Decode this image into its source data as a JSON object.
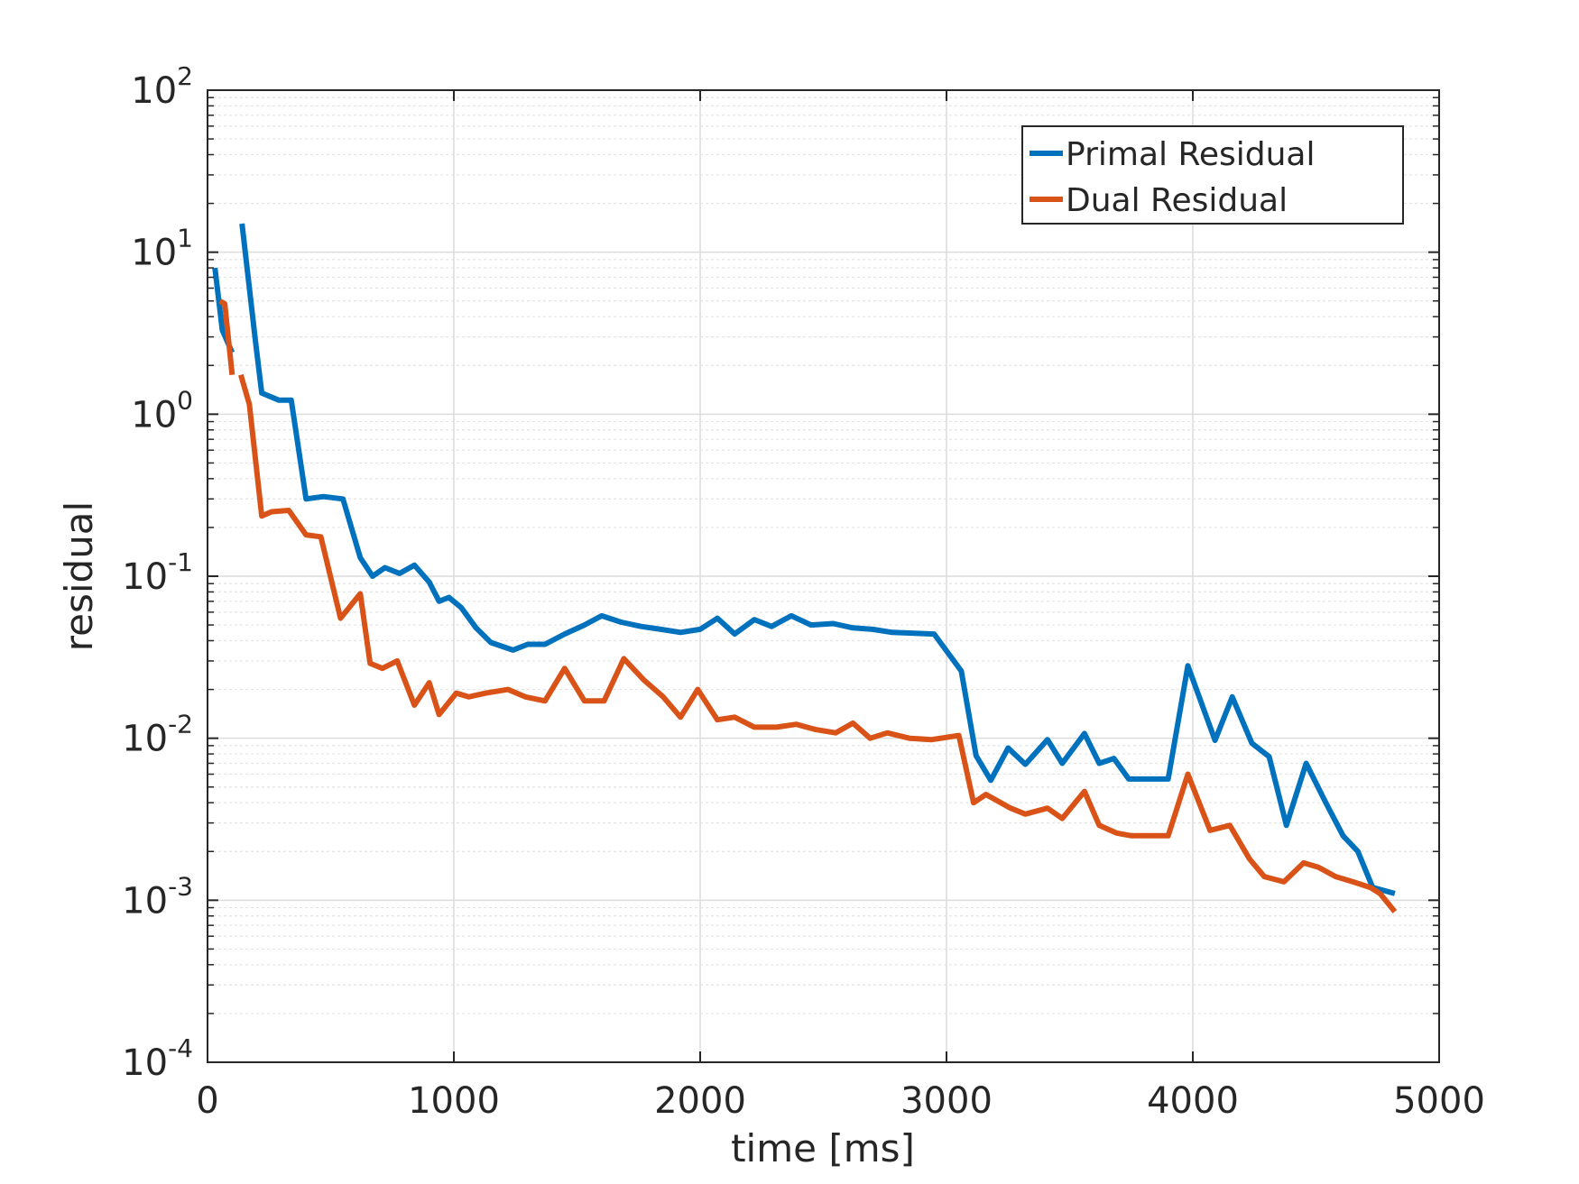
{
  "chart_data": {
    "type": "line",
    "title": "",
    "xlabel": "time [ms]",
    "ylabel": "residual",
    "xlim": [
      0,
      5000
    ],
    "ylim": [
      0.0001,
      100
    ],
    "yscale": "log",
    "grid": true,
    "minor_grid_y": true,
    "legend_position": "top-right",
    "x_ticks": [
      0,
      1000,
      2000,
      3000,
      4000,
      5000
    ],
    "x_tick_labels": [
      "0",
      "1000",
      "2000",
      "3000",
      "4000",
      "5000"
    ],
    "y_ticks": [
      {
        "value": 0.0001,
        "base": "10",
        "exp": "-4"
      },
      {
        "value": 0.001,
        "base": "10",
        "exp": "-3"
      },
      {
        "value": 0.01,
        "base": "10",
        "exp": "-2"
      },
      {
        "value": 0.1,
        "base": "10",
        "exp": "-1"
      },
      {
        "value": 1,
        "base": "10",
        "exp": "0"
      },
      {
        "value": 10,
        "base": "10",
        "exp": "1"
      },
      {
        "value": 100,
        "base": "10",
        "exp": "2"
      }
    ],
    "series": [
      {
        "name": "Primal Residual",
        "color": "#0072BD",
        "segments": [
          [
            [
              30,
              8.0
            ],
            [
              60,
              3.3
            ],
            [
              100,
              2.4
            ]
          ],
          [
            [
              140,
              15.0
            ],
            [
              195,
              2.8
            ],
            [
              220,
              1.35
            ],
            [
              290,
              1.22
            ],
            [
              340,
              1.22
            ],
            [
              400,
              0.3
            ],
            [
              470,
              0.31
            ],
            [
              550,
              0.3
            ],
            [
              620,
              0.13
            ],
            [
              670,
              0.1
            ],
            [
              720,
              0.113
            ],
            [
              780,
              0.104
            ],
            [
              840,
              0.117
            ],
            [
              900,
              0.092
            ],
            [
              940,
              0.07
            ],
            [
              980,
              0.074
            ],
            [
              1030,
              0.064
            ],
            [
              1090,
              0.048
            ],
            [
              1150,
              0.039
            ],
            [
              1240,
              0.035
            ],
            [
              1300,
              0.038
            ],
            [
              1370,
              0.038
            ],
            [
              1450,
              0.044
            ],
            [
              1530,
              0.05
            ],
            [
              1600,
              0.057
            ],
            [
              1680,
              0.052
            ],
            [
              1760,
              0.049
            ],
            [
              1840,
              0.047
            ],
            [
              1920,
              0.045
            ],
            [
              2000,
              0.047
            ],
            [
              2070,
              0.055
            ],
            [
              2140,
              0.044
            ],
            [
              2220,
              0.054
            ],
            [
              2290,
              0.049
            ],
            [
              2370,
              0.057
            ],
            [
              2450,
              0.05
            ],
            [
              2540,
              0.051
            ],
            [
              2620,
              0.048
            ],
            [
              2700,
              0.047
            ],
            [
              2780,
              0.045
            ],
            [
              2950,
              0.044
            ],
            [
              3060,
              0.026
            ],
            [
              3120,
              0.0078
            ],
            [
              3180,
              0.0055
            ],
            [
              3250,
              0.0087
            ],
            [
              3320,
              0.0069
            ],
            [
              3410,
              0.0098
            ],
            [
              3470,
              0.007
            ],
            [
              3560,
              0.0107
            ],
            [
              3620,
              0.007
            ],
            [
              3680,
              0.0075
            ],
            [
              3740,
              0.0056
            ],
            [
              3900,
              0.0056
            ],
            [
              3980,
              0.028
            ],
            [
              4090,
              0.0097
            ],
            [
              4160,
              0.018
            ],
            [
              4240,
              0.0093
            ],
            [
              4310,
              0.0077
            ],
            [
              4380,
              0.0029
            ],
            [
              4460,
              0.007
            ],
            [
              4540,
              0.004
            ],
            [
              4610,
              0.0025
            ],
            [
              4670,
              0.002
            ],
            [
              4730,
              0.0012
            ],
            [
              4820,
              0.0011
            ]
          ]
        ]
      },
      {
        "name": "Dual Residual",
        "color": "#D95319",
        "segments": [
          [
            [
              50,
              5.0
            ],
            [
              70,
              4.8
            ],
            [
              100,
              1.75
            ]
          ],
          [
            [
              135,
              1.75
            ],
            [
              170,
              1.15
            ],
            [
              220,
              0.235
            ],
            [
              260,
              0.25
            ],
            [
              330,
              0.255
            ],
            [
              400,
              0.18
            ],
            [
              460,
              0.175
            ],
            [
              540,
              0.055
            ],
            [
              620,
              0.078
            ],
            [
              660,
              0.029
            ],
            [
              710,
              0.027
            ],
            [
              770,
              0.03
            ],
            [
              840,
              0.016
            ],
            [
              900,
              0.022
            ],
            [
              940,
              0.014
            ],
            [
              1010,
              0.019
            ],
            [
              1060,
              0.018
            ],
            [
              1130,
              0.019
            ],
            [
              1220,
              0.02
            ],
            [
              1290,
              0.018
            ],
            [
              1370,
              0.017
            ],
            [
              1450,
              0.027
            ],
            [
              1530,
              0.017
            ],
            [
              1610,
              0.017
            ],
            [
              1690,
              0.031
            ],
            [
              1770,
              0.023
            ],
            [
              1850,
              0.018
            ],
            [
              1920,
              0.0135
            ],
            [
              1990,
              0.02
            ],
            [
              2070,
              0.013
            ],
            [
              2140,
              0.0135
            ],
            [
              2220,
              0.0117
            ],
            [
              2310,
              0.0117
            ],
            [
              2390,
              0.0122
            ],
            [
              2470,
              0.0113
            ],
            [
              2550,
              0.0108
            ],
            [
              2620,
              0.0124
            ],
            [
              2690,
              0.01
            ],
            [
              2760,
              0.0108
            ],
            [
              2850,
              0.01
            ],
            [
              2940,
              0.0098
            ],
            [
              3050,
              0.0104
            ],
            [
              3110,
              0.004
            ],
            [
              3160,
              0.0045
            ],
            [
              3260,
              0.0037
            ],
            [
              3320,
              0.0034
            ],
            [
              3410,
              0.0037
            ],
            [
              3470,
              0.0032
            ],
            [
              3560,
              0.0047
            ],
            [
              3620,
              0.0029
            ],
            [
              3690,
              0.0026
            ],
            [
              3750,
              0.0025
            ],
            [
              3900,
              0.0025
            ],
            [
              3980,
              0.006
            ],
            [
              4070,
              0.0027
            ],
            [
              4150,
              0.0029
            ],
            [
              4230,
              0.0018
            ],
            [
              4290,
              0.0014
            ],
            [
              4370,
              0.0013
            ],
            [
              4450,
              0.0017
            ],
            [
              4510,
              0.0016
            ],
            [
              4580,
              0.0014
            ],
            [
              4650,
              0.0013
            ],
            [
              4720,
              0.0012
            ],
            [
              4760,
              0.0011
            ],
            [
              4820,
              0.00085
            ]
          ]
        ]
      }
    ]
  }
}
